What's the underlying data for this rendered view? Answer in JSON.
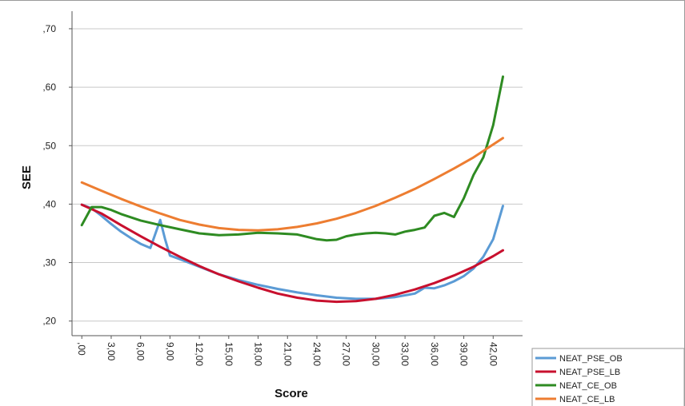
{
  "chart_data": {
    "type": "line",
    "xlabel": "Score",
    "ylabel": "SEE",
    "xlim": [
      -1,
      45
    ],
    "ylim": [
      0.175,
      0.73
    ],
    "x_ticks": [
      ",00",
      "3,00",
      "6,00",
      "9,00",
      "12,00",
      "15,00",
      "18,00",
      "21,00",
      "24,00",
      "27,00",
      "30,00",
      "33,00",
      "36,00",
      "39,00",
      "42,00"
    ],
    "x_tick_values": [
      0,
      3,
      6,
      9,
      12,
      15,
      18,
      21,
      24,
      27,
      30,
      33,
      36,
      39,
      42
    ],
    "y_ticks": [
      ",20",
      ",30",
      ",40",
      ",50",
      ",60",
      ",70"
    ],
    "y_tick_values": [
      0.2,
      0.3,
      0.4,
      0.5,
      0.6,
      0.7
    ],
    "grid": "horizontal",
    "legend_position": "bottom-right",
    "series": [
      {
        "name": "NEAT_PSE_OB",
        "color": "#5b9bd5",
        "x": [
          0,
          1,
          2,
          3,
          4,
          5,
          6,
          7,
          8,
          8.5,
          9,
          10,
          12,
          14,
          16,
          18,
          20,
          22,
          24,
          26,
          28,
          30,
          32,
          34,
          34.5,
          35,
          36,
          37,
          38,
          39,
          40,
          41,
          42,
          43
        ],
        "y": [
          0.399,
          0.393,
          0.38,
          0.366,
          0.353,
          0.342,
          0.332,
          0.325,
          0.373,
          0.34,
          0.312,
          0.306,
          0.293,
          0.28,
          0.27,
          0.262,
          0.255,
          0.249,
          0.244,
          0.24,
          0.238,
          0.238,
          0.241,
          0.247,
          0.252,
          0.257,
          0.256,
          0.261,
          0.268,
          0.277,
          0.29,
          0.31,
          0.34,
          0.397
        ]
      },
      {
        "name": "NEAT_PSE_LB",
        "color": "#c8102e",
        "x": [
          0,
          2,
          4,
          6,
          8,
          10,
          12,
          14,
          16,
          18,
          20,
          22,
          24,
          26,
          28,
          30,
          32,
          34,
          36,
          38,
          40,
          42,
          43
        ],
        "y": [
          0.399,
          0.384,
          0.364,
          0.345,
          0.327,
          0.31,
          0.294,
          0.28,
          0.268,
          0.257,
          0.247,
          0.24,
          0.235,
          0.233,
          0.234,
          0.238,
          0.245,
          0.254,
          0.265,
          0.278,
          0.293,
          0.311,
          0.321
        ]
      },
      {
        "name": "NEAT_CE_OB",
        "color": "#2e8b22",
        "x": [
          0,
          1,
          2,
          3,
          4,
          6,
          8,
          10,
          12,
          14,
          16,
          18,
          20,
          22,
          24,
          25,
          26,
          27,
          28,
          29,
          30,
          31,
          32,
          33,
          34,
          35,
          36,
          37,
          38,
          39,
          40,
          41,
          42,
          43
        ],
        "y": [
          0.364,
          0.395,
          0.395,
          0.39,
          0.383,
          0.372,
          0.364,
          0.357,
          0.35,
          0.347,
          0.348,
          0.351,
          0.35,
          0.348,
          0.34,
          0.338,
          0.339,
          0.345,
          0.348,
          0.35,
          0.351,
          0.35,
          0.348,
          0.353,
          0.356,
          0.36,
          0.38,
          0.385,
          0.378,
          0.41,
          0.45,
          0.48,
          0.535,
          0.618
        ]
      },
      {
        "name": "NEAT_CE_LB",
        "color": "#ed7d31",
        "x": [
          0,
          2,
          4,
          6,
          8,
          10,
          12,
          14,
          16,
          18,
          20,
          22,
          24,
          26,
          28,
          30,
          32,
          34,
          36,
          38,
          40,
          42,
          43
        ],
        "y": [
          0.437,
          0.423,
          0.409,
          0.396,
          0.384,
          0.373,
          0.365,
          0.359,
          0.356,
          0.355,
          0.357,
          0.361,
          0.367,
          0.375,
          0.385,
          0.397,
          0.411,
          0.426,
          0.443,
          0.461,
          0.48,
          0.502,
          0.513
        ]
      }
    ]
  }
}
